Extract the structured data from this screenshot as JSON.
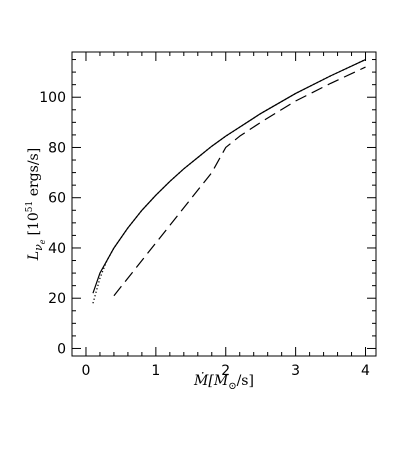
{
  "chart_data": {
    "type": "line",
    "title": "",
    "xlabel": {
      "main": "Ṁ[M",
      "sub": "⊙",
      "tail": "/s]"
    },
    "ylabel": {
      "main": "L",
      "sub": "ν",
      "subsub": "e",
      "bracket": "[10",
      "sup": "51",
      "units": " ergs/s]"
    },
    "xlim": [
      -0.2,
      4.15
    ],
    "ylim": [
      -3,
      118
    ],
    "x_ticks": [
      0,
      1,
      2,
      3,
      4
    ],
    "y_ticks": [
      0,
      20,
      40,
      60,
      80,
      100
    ],
    "x_tick_labels": [
      "0",
      "1",
      "2",
      "3",
      "4"
    ],
    "y_tick_labels": [
      "0",
      "20",
      "40",
      "60",
      "80",
      "100"
    ],
    "x_minor_step": 0.2,
    "y_minor_step": 5,
    "grid": false,
    "legend": "none",
    "series": [
      {
        "style": "solid",
        "x": [
          0.1,
          0.2,
          0.4,
          0.6,
          0.8,
          1.0,
          1.2,
          1.4,
          1.6,
          1.8,
          2.0,
          2.5,
          3.0,
          3.5,
          4.0
        ],
        "y": [
          22,
          30,
          40,
          48,
          55,
          61,
          66.5,
          71.5,
          76,
          80.5,
          84.5,
          93.5,
          101.5,
          108.5,
          115
        ]
      },
      {
        "style": "dotted",
        "x": [
          0.1,
          0.15,
          0.2,
          0.3,
          0.4,
          0.6,
          0.8,
          1.0,
          1.2,
          1.4,
          1.6,
          1.8,
          2.0,
          2.5,
          3.0,
          3.5,
          4.0
        ],
        "y": [
          18,
          23,
          28,
          35,
          40,
          48,
          55,
          61,
          66.5,
          71.5,
          76,
          80.5,
          84.5,
          93.5,
          101.5,
          108.5,
          115
        ]
      },
      {
        "style": "dashed",
        "x": [
          0.4,
          0.6,
          0.8,
          1.0,
          1.2,
          1.4,
          1.6,
          1.8,
          2.0,
          2.2,
          2.5,
          3.0,
          3.5,
          4.0
        ],
        "y": [
          21,
          28,
          35,
          42,
          49,
          56,
          63,
          70,
          80,
          84.5,
          90,
          98.5,
          105.5,
          112
        ]
      }
    ]
  }
}
